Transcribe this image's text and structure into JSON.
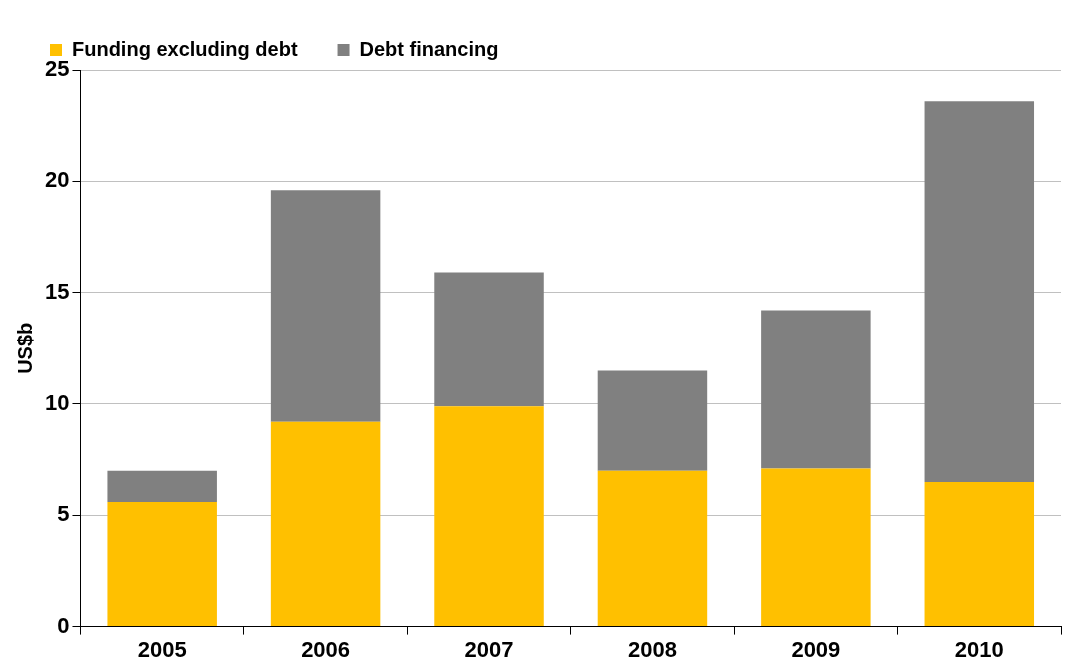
{
  "chart_data": {
    "type": "bar",
    "stacked": true,
    "ylabel": "US$b",
    "categories": [
      "2005",
      "2006",
      "2007",
      "2008",
      "2009",
      "2010"
    ],
    "series": [
      {
        "name": "Funding excluding debt",
        "color": "#ffc000",
        "values": [
          5.6,
          9.2,
          9.9,
          7.0,
          7.1,
          6.5
        ]
      },
      {
        "name": "Debt financing",
        "color": "#808080",
        "values": [
          1.4,
          10.4,
          6.0,
          4.5,
          7.1,
          17.1
        ]
      }
    ],
    "ylim": [
      0,
      25
    ],
    "yticks": [
      0,
      5,
      10,
      15,
      20,
      25
    ],
    "grid": "y",
    "legend": "top"
  }
}
